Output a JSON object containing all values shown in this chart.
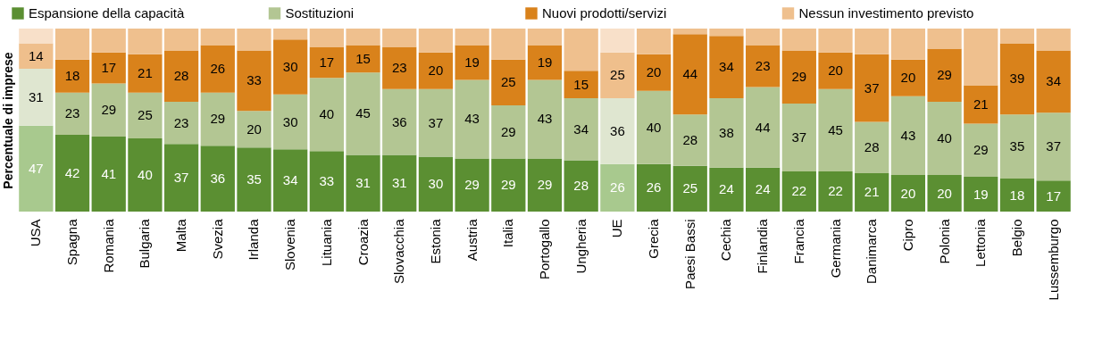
{
  "chart_data": {
    "type": "bar",
    "stacked": true,
    "ylabel": "Percentuale di imprese",
    "legend": "top",
    "tick_labels": "x",
    "categories": [
      "USA",
      "Spagna",
      "Romania",
      "Bulgaria",
      "Malta",
      "Svezia",
      "Irlanda",
      "Slovenia",
      "Lituania",
      "Croazia",
      "Slovacchia",
      "Estonia",
      "Austria",
      "Italia",
      "Portogallo",
      "Ungheria",
      "UE",
      "Grecia",
      "Paesi Bassi",
      "Cechia",
      "Finlandia",
      "Francia",
      "Germania",
      "Danimarca",
      "Cipro",
      "Polonia",
      "Lettonia",
      "Belgio",
      "Lussemburgo"
    ],
    "series": [
      {
        "name": "Espansione della capacità",
        "color": "#5b8f32",
        "colors": [
          "#a8c98e",
          "#5b8f32",
          "#5b8f32",
          "#5b8f32",
          "#5b8f32",
          "#5b8f32",
          "#5b8f32",
          "#5b8f32",
          "#5b8f32",
          "#5b8f32",
          "#5b8f32",
          "#5b8f32",
          "#5b8f32",
          "#5b8f32",
          "#5b8f32",
          "#5b8f32",
          "#a8c98e",
          "#5b8f32",
          "#5b8f32",
          "#5b8f32",
          "#5b8f32",
          "#5b8f32",
          "#5b8f32",
          "#5b8f32",
          "#5b8f32",
          "#5b8f32",
          "#5b8f32",
          "#5b8f32",
          "#5b8f32"
        ],
        "values": [
          47,
          42,
          41,
          40,
          37,
          36,
          35,
          34,
          33,
          31,
          31,
          30,
          29,
          29,
          29,
          28,
          26,
          26,
          25,
          24,
          24,
          22,
          22,
          21,
          20,
          20,
          19,
          18,
          17
        ],
        "value_labels": [
          "47",
          "42",
          "41",
          "40",
          "37",
          "36",
          "35",
          "34",
          "33",
          "31",
          "31",
          "30",
          "29",
          "29",
          "29",
          "28",
          "26",
          "26",
          "25",
          "24",
          "24",
          "22",
          "22",
          "21",
          "20",
          "20",
          "19",
          "18",
          "17"
        ]
      },
      {
        "name": "Sostituzioni",
        "color": "#b3c693",
        "colors": [
          "#dfe6d0",
          "#b3c693",
          "#b3c693",
          "#b3c693",
          "#b3c693",
          "#b3c693",
          "#b3c693",
          "#b3c693",
          "#b3c693",
          "#b3c693",
          "#b3c693",
          "#b3c693",
          "#b3c693",
          "#b3c693",
          "#b3c693",
          "#b3c693",
          "#dfe6d0",
          "#b3c693",
          "#b3c693",
          "#b3c693",
          "#b3c693",
          "#b3c693",
          "#b3c693",
          "#b3c693",
          "#b3c693",
          "#b3c693",
          "#b3c693",
          "#b3c693",
          "#b3c693"
        ],
        "values": [
          31,
          23,
          29,
          25,
          23,
          29,
          20,
          30,
          40,
          45,
          36,
          37,
          43,
          29,
          43,
          34,
          36,
          40,
          28,
          38,
          44,
          37,
          45,
          28,
          43,
          40,
          29,
          35,
          37
        ],
        "value_labels": [
          "31",
          "23",
          "29",
          "25",
          "23",
          "29",
          "20",
          "30",
          "40",
          "45",
          "36",
          "37",
          "43",
          "29",
          "43",
          "34",
          "36",
          "40",
          "28",
          "38",
          "44",
          "37",
          "45",
          "28",
          "43",
          "40",
          "29",
          "35",
          "37"
        ]
      },
      {
        "name": "Nuovi prodotti/servizi",
        "color": "#d9821b",
        "colors": [
          "#efbf8c",
          "#d9821b",
          "#d9821b",
          "#d9821b",
          "#d9821b",
          "#d9821b",
          "#d9821b",
          "#d9821b",
          "#d9821b",
          "#d9821b",
          "#d9821b",
          "#d9821b",
          "#d9821b",
          "#d9821b",
          "#d9821b",
          "#d9821b",
          "#efbf8c",
          "#d9821b",
          "#d9821b",
          "#d9821b",
          "#d9821b",
          "#d9821b",
          "#d9821b",
          "#d9821b",
          "#d9821b",
          "#d9821b",
          "#d9821b",
          "#d9821b",
          "#d9821b"
        ],
        "values": [
          14,
          18,
          17,
          21,
          28,
          26,
          33,
          30,
          17,
          15,
          23,
          20,
          19,
          25,
          19,
          15,
          25,
          20,
          44,
          34,
          23,
          29,
          20,
          37,
          20,
          29,
          21,
          39,
          34
        ],
        "value_labels": [
          "14",
          "18",
          "17",
          "21",
          "28",
          "26",
          "33",
          "30",
          "17",
          "15",
          "23",
          "20",
          "19",
          "25",
          "19",
          "15",
          "25",
          "20",
          "44",
          "34",
          "23",
          "29",
          "20",
          "37",
          "20",
          "29",
          "21",
          "39",
          "34"
        ]
      },
      {
        "name": "Nessun investimento previsto",
        "color": "#efc08e",
        "colors": [
          "#f8e0c9",
          "#efc08e",
          "#efc08e",
          "#efc08e",
          "#efc08e",
          "#efc08e",
          "#efc08e",
          "#efc08e",
          "#efc08e",
          "#efc08e",
          "#efc08e",
          "#efc08e",
          "#efc08e",
          "#efc08e",
          "#efc08e",
          "#efc08e",
          "#f8e0c9",
          "#efc08e",
          "#efc08e",
          "#efc08e",
          "#efc08e",
          "#efc08e",
          "#efc08e",
          "#efc08e",
          "#efc08e",
          "#efc08e",
          "#efc08e",
          "#efc08e",
          "#efc08e"
        ],
        "values": [
          8,
          17,
          13,
          14,
          12,
          9,
          12,
          6,
          10,
          9,
          10,
          13,
          9,
          17,
          9,
          23,
          13,
          14,
          3,
          4,
          9,
          12,
          13,
          14,
          17,
          11,
          31,
          8,
          12
        ]
      }
    ]
  }
}
